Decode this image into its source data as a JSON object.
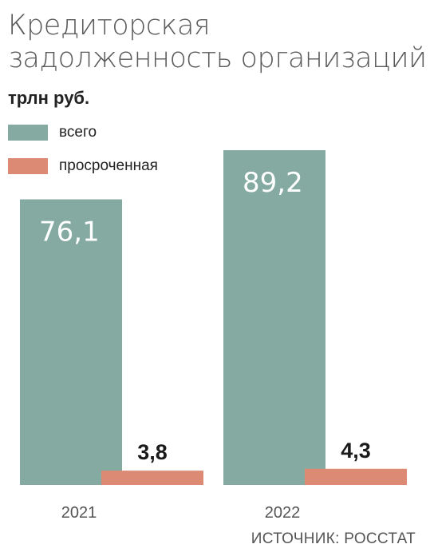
{
  "title": "Кредиторская задолженность организаций",
  "unit": "трлн руб.",
  "legend": [
    {
      "label": "всего",
      "color": "#84aaa1"
    },
    {
      "label": "просроченная",
      "color": "#dc8a73"
    }
  ],
  "chart_data": {
    "type": "bar",
    "categories": [
      "2021",
      "2022"
    ],
    "series": [
      {
        "name": "всего",
        "values": [
          76.1,
          89.2
        ],
        "labels": [
          "76,1",
          "89,2"
        ],
        "color": "#84aaa1"
      },
      {
        "name": "просроченная",
        "values": [
          3.8,
          4.3
        ],
        "labels": [
          "3,8",
          "4,3"
        ],
        "color": "#dc8a73"
      }
    ],
    "ylim": [
      0,
      89.2
    ],
    "grid": false,
    "legend_position": "top-left"
  },
  "source": "ИСТОЧНИК: РОССТАТ"
}
